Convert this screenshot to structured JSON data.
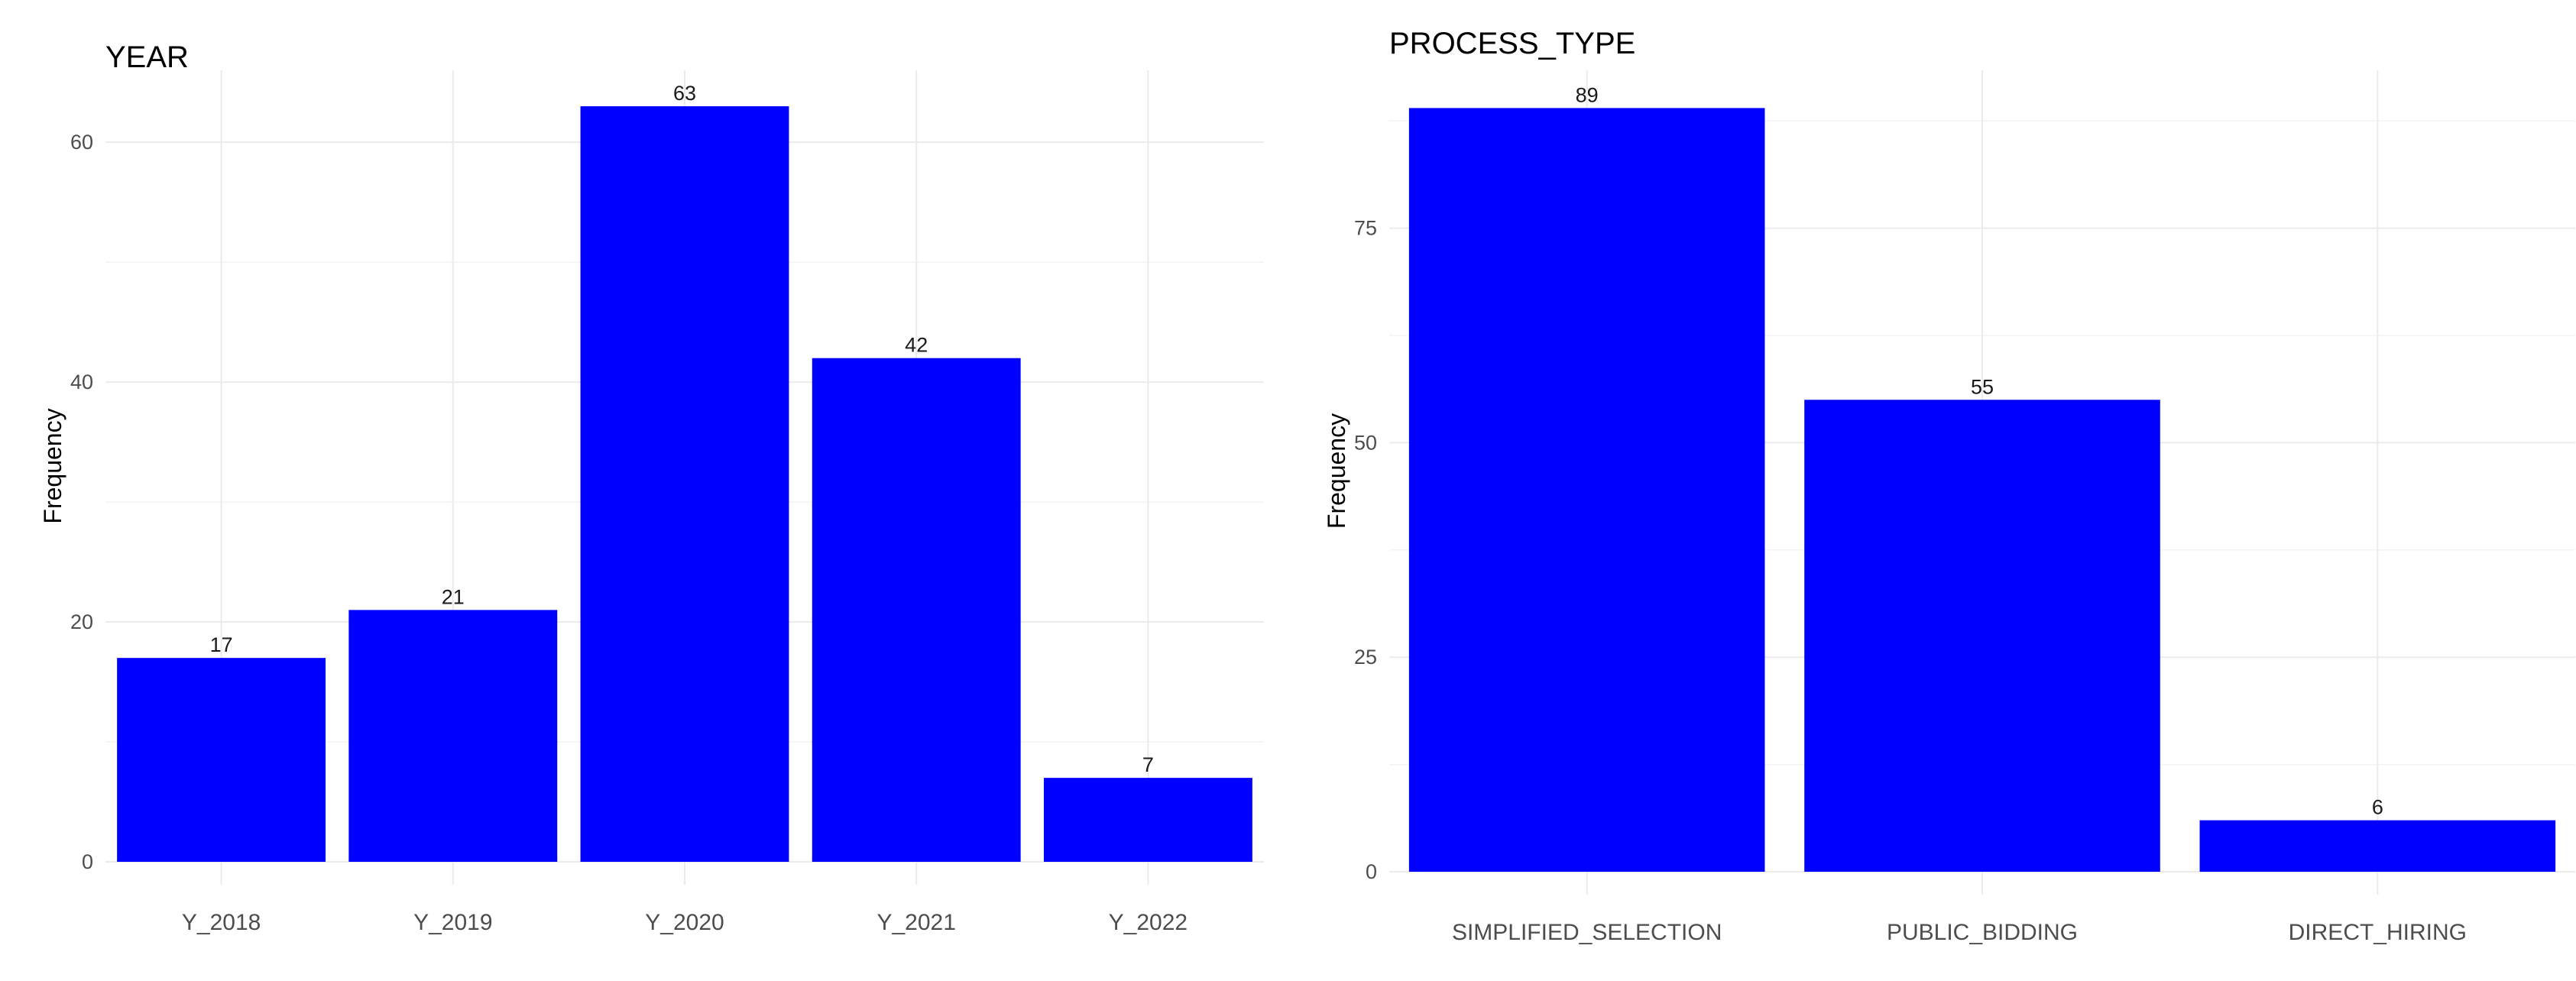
{
  "chart_data": [
    {
      "type": "bar",
      "title": "YEAR",
      "xlabel": "",
      "ylabel": "Frequency",
      "categories": [
        "Y_2018",
        "Y_2019",
        "Y_2020",
        "Y_2021",
        "Y_2022"
      ],
      "values": [
        17,
        21,
        63,
        42,
        7
      ],
      "ylim": [
        0,
        66
      ],
      "yticks": [
        0,
        20,
        40,
        60
      ],
      "bar_color": "#0000ff",
      "grid": true,
      "data_labels": true
    },
    {
      "type": "bar",
      "title": "PROCESS_TYPE",
      "xlabel": "",
      "ylabel": "Frequency",
      "categories": [
        "SIMPLIFIED_SELECTION",
        "PUBLIC_BIDDING",
        "DIRECT_HIRING"
      ],
      "values": [
        89,
        55,
        6
      ],
      "ylim": [
        0,
        93.4
      ],
      "yticks": [
        0,
        25,
        50,
        75
      ],
      "bar_color": "#0000ff",
      "grid": true,
      "data_labels": true
    }
  ]
}
